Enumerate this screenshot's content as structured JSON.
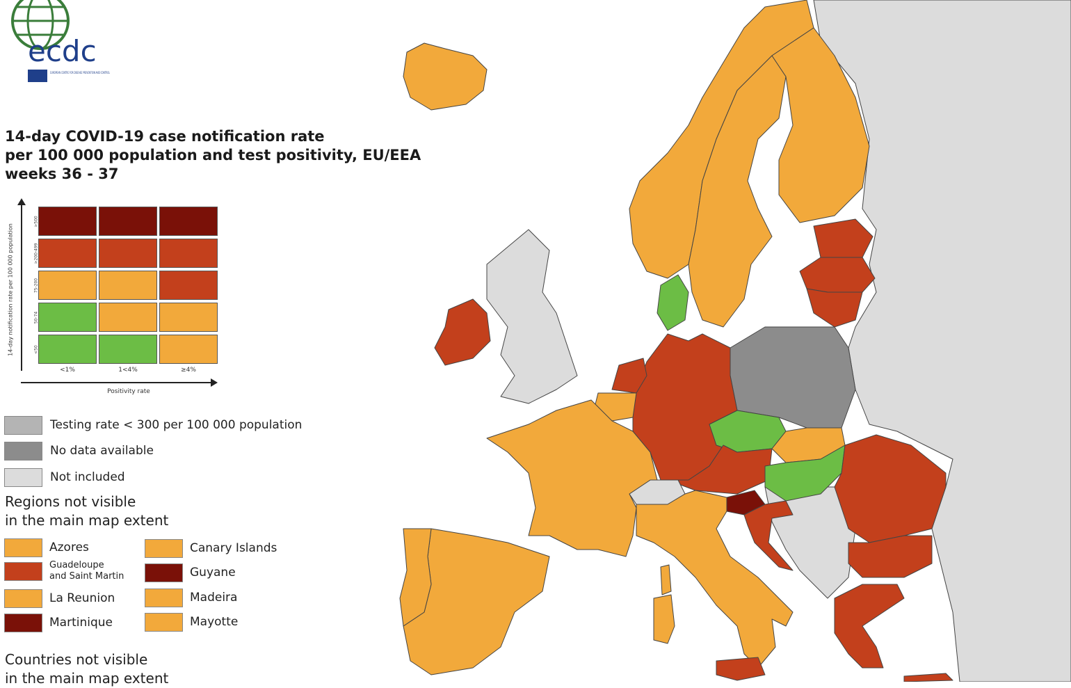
{
  "colors": {
    "sea": "#ffffff",
    "not_included": "#dcdcdc",
    "no_data": "#8c8c8c",
    "testing_low": "#b4b4b4",
    "green": "#6cbd45",
    "orange": "#f2a93b",
    "red": "#c3401c",
    "dark_red": "#7a1108",
    "border": "#333333"
  },
  "logo": {
    "text": "ecdc",
    "subtitle": "EUROPEAN CENTRE FOR DISEASE PREVENTION AND CONTROL"
  },
  "title": {
    "line1": "14-day COVID-19 case notification rate",
    "line2": "per 100 000 population and test positivity, EU/EEA",
    "line3": "weeks 36 - 37"
  },
  "matrix": {
    "y_axis_label": "14-day notification rate per 100 000 population",
    "x_axis_label": "Positivity rate",
    "rate_bands": [
      ">500",
      ">200-499",
      "75-200",
      "50-74",
      "<50"
    ],
    "positivity_bands": [
      "<1%",
      "1<4%",
      "≥4%"
    ],
    "cells": [
      [
        "dark_red",
        "dark_red",
        "dark_red"
      ],
      [
        "red",
        "red",
        "red"
      ],
      [
        "orange",
        "orange",
        "red"
      ],
      [
        "green",
        "orange",
        "orange"
      ],
      [
        "green",
        "green",
        "orange"
      ]
    ]
  },
  "legend": [
    {
      "label": "Testing rate < 300 per 100 000 population",
      "color": "testing_low"
    },
    {
      "label": "No data available",
      "color": "no_data"
    },
    {
      "label": "Not included",
      "color": "not_included"
    }
  ],
  "regions_title": {
    "line1": "Regions not visible",
    "line2": "in the main map extent"
  },
  "regions": [
    {
      "name": "Azores",
      "color": "orange"
    },
    {
      "name": "Canary Islands",
      "color": "orange"
    },
    {
      "name": "Guadeloupe and Saint Martin",
      "line1": "Guadeloupe",
      "line2": "and Saint Martin",
      "color": "red"
    },
    {
      "name": "Guyane",
      "color": "dark_red"
    },
    {
      "name": "La Reunion",
      "color": "orange"
    },
    {
      "name": "Madeira",
      "color": "orange"
    },
    {
      "name": "Martinique",
      "color": "dark_red"
    },
    {
      "name": "Mayotte",
      "color": "orange"
    }
  ],
  "countries_title": {
    "line1": "Countries not visible",
    "line2": "in the main map extent"
  },
  "map_regions": [
    {
      "name": "Iceland",
      "color": "orange"
    },
    {
      "name": "Norway",
      "color": "orange"
    },
    {
      "name": "Sweden",
      "color": "orange"
    },
    {
      "name": "Finland",
      "color": "orange"
    },
    {
      "name": "Estonia",
      "color": "red"
    },
    {
      "name": "Latvia",
      "color": "red"
    },
    {
      "name": "Lithuania",
      "color": "red"
    },
    {
      "name": "Denmark",
      "color": "green"
    },
    {
      "name": "Ireland",
      "color": "red"
    },
    {
      "name": "United Kingdom",
      "color": "not_included"
    },
    {
      "name": "Netherlands",
      "color": "red"
    },
    {
      "name": "Belgium",
      "color": "orange"
    },
    {
      "name": "Germany",
      "color": "red"
    },
    {
      "name": "Poland",
      "color": "no_data"
    },
    {
      "name": "Czechia",
      "color": "green"
    },
    {
      "name": "Slovakia",
      "color": "orange"
    },
    {
      "name": "Austria",
      "color": "red"
    },
    {
      "name": "Hungary",
      "color": "green"
    },
    {
      "name": "Slovenia",
      "color": "dark_red"
    },
    {
      "name": "Croatia",
      "color": "red"
    },
    {
      "name": "Switzerland",
      "color": "not_included"
    },
    {
      "name": "France",
      "color": "orange"
    },
    {
      "name": "Italy",
      "color": "orange"
    },
    {
      "name": "Spain",
      "color": "orange"
    },
    {
      "name": "Portugal",
      "color": "orange"
    },
    {
      "name": "Romania",
      "color": "red"
    },
    {
      "name": "Bulgaria",
      "color": "red"
    },
    {
      "name": "Greece",
      "color": "red"
    },
    {
      "name": "Balkans",
      "color": "not_included"
    },
    {
      "name": "Belarus / Ukraine / Russia",
      "color": "not_included"
    }
  ]
}
